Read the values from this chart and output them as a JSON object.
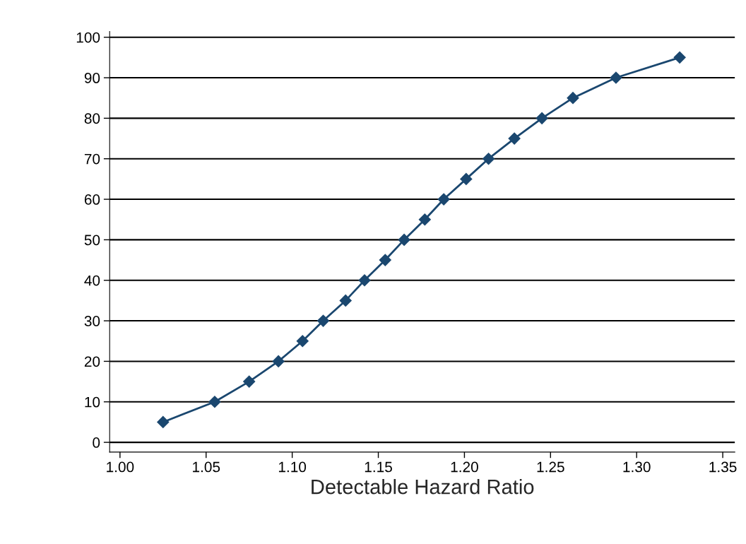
{
  "chart_data": {
    "type": "line",
    "xlabel": "Detectable Hazard Ratio",
    "x": [
      1.025,
      1.055,
      1.075,
      1.092,
      1.106,
      1.118,
      1.131,
      1.142,
      1.154,
      1.165,
      1.177,
      1.188,
      1.201,
      1.214,
      1.229,
      1.245,
      1.263,
      1.288,
      1.325
    ],
    "series": [
      {
        "color": "#1a476f",
        "values": [
          5,
          10,
          15,
          20,
          25,
          30,
          35,
          40,
          45,
          50,
          55,
          60,
          65,
          70,
          75,
          80,
          85,
          90,
          95
        ]
      }
    ],
    "xlim": [
      0.994,
      1.357
    ],
    "ylim": [
      -2.4,
      101.4
    ],
    "xticks": [
      {
        "value": 1.0,
        "label": "1.00"
      },
      {
        "value": 1.05,
        "label": "1.05"
      },
      {
        "value": 1.1,
        "label": "1.10"
      },
      {
        "value": 1.15,
        "label": "1.15"
      },
      {
        "value": 1.2,
        "label": "1.20"
      },
      {
        "value": 1.25,
        "label": "1.25"
      },
      {
        "value": 1.3,
        "label": "1.30"
      },
      {
        "value": 1.35,
        "label": "1.35"
      }
    ],
    "yticks": [
      0,
      10,
      20,
      30,
      40,
      50,
      60,
      70,
      80,
      90,
      100
    ],
    "grid": "y",
    "marker": "diamond",
    "line_style": "solid",
    "legend": false
  }
}
